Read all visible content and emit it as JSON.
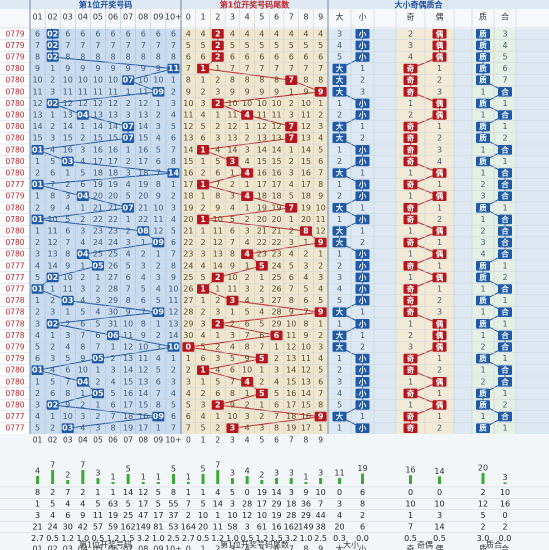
{
  "headers": {
    "sec_a": "第1位开奖号码",
    "sec_b": "第1位开奖号码尾数",
    "sec_c": "大小奇偶质合"
  },
  "col_labels": {
    "a": [
      "01",
      "02",
      "03",
      "04",
      "05",
      "06",
      "07",
      "08",
      "09",
      "10+"
    ],
    "b": [
      "0",
      "1",
      "2",
      "3",
      "4",
      "5",
      "6",
      "7",
      "8",
      "9"
    ],
    "c": [
      "大",
      "小",
      "",
      "奇",
      "偶",
      "",
      "质",
      "合"
    ]
  },
  "footer_labels": {
    "a": "第1位开奖号码",
    "b": "第1位开奖号码尾数",
    "c1": "大小",
    "c2": "奇偶",
    "c3": "质合"
  },
  "left_codes": [
    "0779",
    "0779",
    "0779",
    "0780",
    "0780",
    "0780",
    "0780",
    "0780",
    "0780",
    "0780",
    "0780",
    "0780",
    "0780",
    "0777",
    "0779",
    "0780",
    "0780",
    "0780",
    "0780",
    "0780",
    "0777",
    "0777",
    "0777",
    "0778",
    "0778",
    "0778",
    "0778",
    "0779",
    "0779",
    "0780",
    "0780",
    "0780",
    "0780",
    "0777",
    "0777"
  ],
  "chart_data": {
    "type": "table",
    "draw_values": [
      2,
      2,
      2,
      11,
      7,
      9,
      2,
      4,
      7,
      7,
      1,
      3,
      14,
      1,
      4,
      7,
      1,
      8,
      9,
      4,
      5,
      2,
      1,
      3,
      9,
      2,
      6,
      10,
      5,
      1,
      4,
      5,
      2,
      9,
      3
    ],
    "counts": {
      "a": [
        4,
        7,
        2,
        7,
        3,
        1,
        5,
        1,
        1,
        5
      ],
      "b": [
        1,
        5,
        7,
        3,
        4,
        2,
        3,
        3,
        1,
        3
      ],
      "c": [
        11,
        19,
        16,
        14,
        20,
        3
      ]
    },
    "stats": [
      {
        "label": "row1",
        "a": [
          "8",
          "2",
          "7",
          "2",
          "1",
          "1",
          "14",
          "12",
          "5",
          "8"
        ],
        "b": [
          "1",
          "1",
          "4",
          "5",
          "0",
          "19",
          "14",
          "3",
          "9",
          "10"
        ],
        "c": [
          "0",
          "6",
          "0",
          "0",
          "2",
          "10"
        ]
      },
      {
        "label": "row2",
        "a": [
          "1",
          "5",
          "4",
          "4",
          "5",
          "63",
          "5",
          "17",
          "5",
          "55"
        ],
        "b": [
          "7",
          "5",
          "14",
          "3",
          "28",
          "17",
          "29",
          "18",
          "36",
          "7"
        ],
        "c": [
          "3",
          "8",
          "10",
          "10",
          "12",
          "16"
        ]
      },
      {
        "label": "row3",
        "a": [
          "3",
          "4",
          "6",
          "9",
          "11",
          "19",
          "25",
          "47",
          "17",
          "37"
        ],
        "b": [
          "2",
          "10",
          "1",
          "10",
          "12",
          "10",
          "19",
          "28",
          "29",
          "44"
        ],
        "c": [
          "4",
          "2",
          "1",
          "3",
          "5",
          "0"
        ]
      },
      {
        "label": "row4",
        "a": [
          "21",
          "24",
          "30",
          "42",
          "57",
          "59",
          "162",
          "149",
          "81",
          "53"
        ],
        "b": [
          "164",
          "20",
          "11",
          "58",
          "3",
          "61",
          "16",
          "162",
          "149",
          "38"
        ],
        "c": [
          "20",
          "6",
          "7",
          "14",
          "2",
          "2"
        ]
      },
      {
        "label": "row5",
        "a": [
          "2.7",
          "0.5",
          "1.2",
          "1.0",
          "0.5",
          "1.2",
          "1.5",
          "3.2",
          "1.0",
          "2.5"
        ],
        "b": [
          "2.7",
          "0.5",
          "1.2",
          "1.0",
          "0.5",
          "1.2",
          "1.5",
          "3.2",
          "1.0",
          "2.5"
        ],
        "c": [
          "0.3",
          "0.0",
          "0.5",
          "0.5",
          "3.0",
          "0.0"
        ]
      }
    ]
  }
}
